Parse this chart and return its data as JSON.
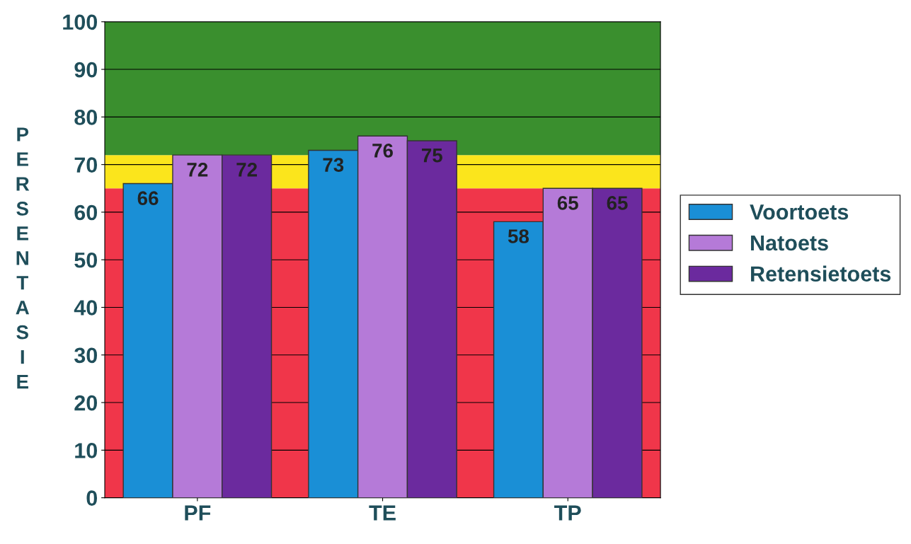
{
  "chart_data": {
    "type": "bar",
    "ylabel": "PERSENTASIE",
    "categories": [
      "PF",
      "TE",
      "TP"
    ],
    "series": [
      {
        "name": "Voortoets",
        "color": "#1a8fd6",
        "values": [
          66,
          73,
          58
        ]
      },
      {
        "name": "Natoets",
        "color": "#b57ad8",
        "values": [
          72,
          76,
          65
        ]
      },
      {
        "name": "Retensietoets",
        "color": "#6b2a9e",
        "values": [
          72,
          75,
          65
        ]
      }
    ],
    "ylim": [
      0,
      100
    ],
    "yticks": [
      0,
      10,
      20,
      30,
      40,
      50,
      60,
      70,
      80,
      90,
      100
    ],
    "bands": [
      {
        "axis": "y",
        "from": 0,
        "to": 65,
        "color": "#f0364a"
      },
      {
        "axis": "y",
        "from": 65,
        "to": 72,
        "color": "#fbe51c"
      },
      {
        "axis": "y",
        "from": 72,
        "to": 100,
        "color": "#3a8f2e"
      }
    ],
    "grid": "y",
    "data_labels": true,
    "legend": "right"
  }
}
